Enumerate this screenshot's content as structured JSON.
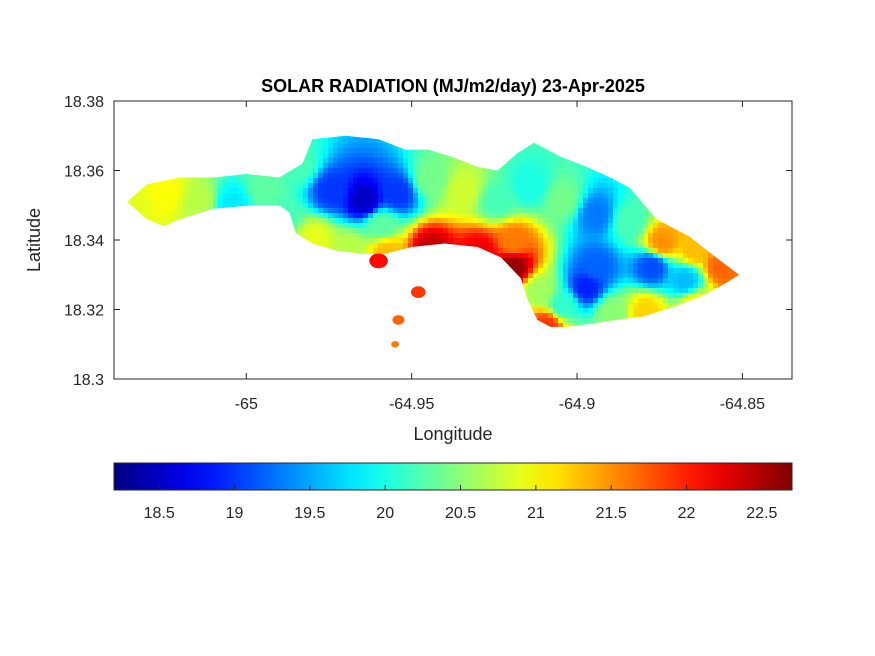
{
  "chart_data": {
    "type": "heatmap",
    "title": "SOLAR RADIATION (MJ/m2/day) 23-Apr-2025",
    "xlabel": "Longitude",
    "ylabel": "Latitude",
    "xlim": [
      -65.04,
      -64.835
    ],
    "ylim": [
      18.3,
      18.38
    ],
    "xticks": [
      -65,
      -64.95,
      -64.9,
      -64.85
    ],
    "yticks": [
      18.3,
      18.32,
      18.34,
      18.36,
      18.38
    ],
    "xtick_labels": [
      "-65",
      "-64.95",
      "-64.9",
      "-64.85"
    ],
    "ytick_labels": [
      "18.3",
      "18.32",
      "18.34",
      "18.36",
      "18.38"
    ],
    "colorbar": {
      "colormap": "jet",
      "clim": [
        18.2,
        22.7
      ],
      "ticks": [
        18.5,
        19,
        19.5,
        20,
        20.5,
        21,
        21.5,
        22,
        22.5
      ],
      "tick_labels": [
        "18.5",
        "19",
        "19.5",
        "20",
        "20.5",
        "21",
        "21.5",
        "22",
        "22.5"
      ],
      "location": "south"
    },
    "land_outline": [
      [
        -65.036,
        18.351
      ],
      [
        -65.03,
        18.356
      ],
      [
        -65.02,
        18.358
      ],
      [
        -65.01,
        18.358
      ],
      [
        -65.0,
        18.359
      ],
      [
        -64.99,
        18.358
      ],
      [
        -64.983,
        18.362
      ],
      [
        -64.98,
        18.369
      ],
      [
        -64.97,
        18.37
      ],
      [
        -64.96,
        18.369
      ],
      [
        -64.952,
        18.366
      ],
      [
        -64.945,
        18.366
      ],
      [
        -64.938,
        18.364
      ],
      [
        -64.93,
        18.361
      ],
      [
        -64.924,
        18.36
      ],
      [
        -64.918,
        18.365
      ],
      [
        -64.913,
        18.368
      ],
      [
        -64.905,
        18.364
      ],
      [
        -64.897,
        18.361
      ],
      [
        -64.89,
        18.358
      ],
      [
        -64.884,
        18.355
      ],
      [
        -64.876,
        18.346
      ],
      [
        -64.866,
        18.341
      ],
      [
        -64.858,
        18.335
      ],
      [
        -64.851,
        18.33
      ],
      [
        -64.856,
        18.327
      ],
      [
        -64.862,
        18.324
      ],
      [
        -64.87,
        18.321
      ],
      [
        -64.88,
        18.318
      ],
      [
        -64.888,
        18.317
      ],
      [
        -64.895,
        18.316
      ],
      [
        -64.903,
        18.315
      ],
      [
        -64.908,
        18.315
      ],
      [
        -64.912,
        18.317
      ],
      [
        -64.915,
        18.323
      ],
      [
        -64.917,
        18.329
      ],
      [
        -64.923,
        18.335
      ],
      [
        -64.93,
        18.338
      ],
      [
        -64.94,
        18.339
      ],
      [
        -64.95,
        18.338
      ],
      [
        -64.958,
        18.336
      ],
      [
        -64.965,
        18.336
      ],
      [
        -64.973,
        18.337
      ],
      [
        -64.98,
        18.339
      ],
      [
        -64.985,
        18.342
      ],
      [
        -64.987,
        18.348
      ],
      [
        -64.99,
        18.35
      ],
      [
        -64.998,
        18.35
      ],
      [
        -65.01,
        18.349
      ],
      [
        -65.02,
        18.346
      ],
      [
        -65.025,
        18.344
      ],
      [
        -65.03,
        18.346
      ],
      [
        -65.036,
        18.351
      ]
    ],
    "field_points": [
      [
        -65.035,
        18.351,
        20.9
      ],
      [
        -65.025,
        18.354,
        21.0
      ],
      [
        -65.015,
        18.352,
        20.7
      ],
      [
        -65.005,
        18.351,
        19.8
      ],
      [
        -64.995,
        18.355,
        20.3
      ],
      [
        -64.985,
        18.362,
        20.2
      ],
      [
        -64.975,
        18.355,
        19.0
      ],
      [
        -64.965,
        18.352,
        18.5
      ],
      [
        -64.955,
        18.354,
        19.0
      ],
      [
        -64.945,
        18.358,
        20.4
      ],
      [
        -64.935,
        18.355,
        20.8
      ],
      [
        -64.925,
        18.352,
        20.2
      ],
      [
        -64.915,
        18.356,
        20.0
      ],
      [
        -64.905,
        18.352,
        20.4
      ],
      [
        -64.895,
        18.348,
        19.3
      ],
      [
        -64.885,
        18.346,
        20.2
      ],
      [
        -64.875,
        18.34,
        21.5
      ],
      [
        -64.865,
        18.338,
        21.3
      ],
      [
        -64.857,
        18.333,
        21.7
      ],
      [
        -64.878,
        18.333,
        19.1
      ],
      [
        -64.868,
        18.329,
        19.6
      ],
      [
        -64.895,
        18.333,
        19.2
      ],
      [
        -64.898,
        18.327,
        18.9
      ],
      [
        -64.905,
        18.322,
        20.1
      ],
      [
        -64.912,
        18.326,
        20.6
      ],
      [
        -64.92,
        18.333,
        22.6
      ],
      [
        -64.93,
        18.337,
        22.2
      ],
      [
        -64.945,
        18.338,
        22.4
      ],
      [
        -64.958,
        18.337,
        21.3
      ],
      [
        -64.97,
        18.338,
        20.7
      ],
      [
        -64.98,
        18.341,
        20.9
      ],
      [
        -64.89,
        18.32,
        20.5
      ],
      [
        -64.88,
        18.32,
        21.2
      ],
      [
        -64.91,
        18.316,
        21.9
      ],
      [
        -64.865,
        18.322,
        21.0
      ],
      [
        -64.92,
        18.34,
        21.6
      ],
      [
        -64.96,
        18.345,
        20.3
      ],
      [
        -64.99,
        18.347,
        20.2
      ]
    ],
    "islets": [
      [
        -64.96,
        18.334,
        0.0028,
        22.1
      ],
      [
        -64.948,
        18.325,
        0.0022,
        21.9
      ],
      [
        -64.954,
        18.317,
        0.0018,
        21.7
      ],
      [
        -64.955,
        18.31,
        0.0012,
        21.6
      ]
    ]
  }
}
